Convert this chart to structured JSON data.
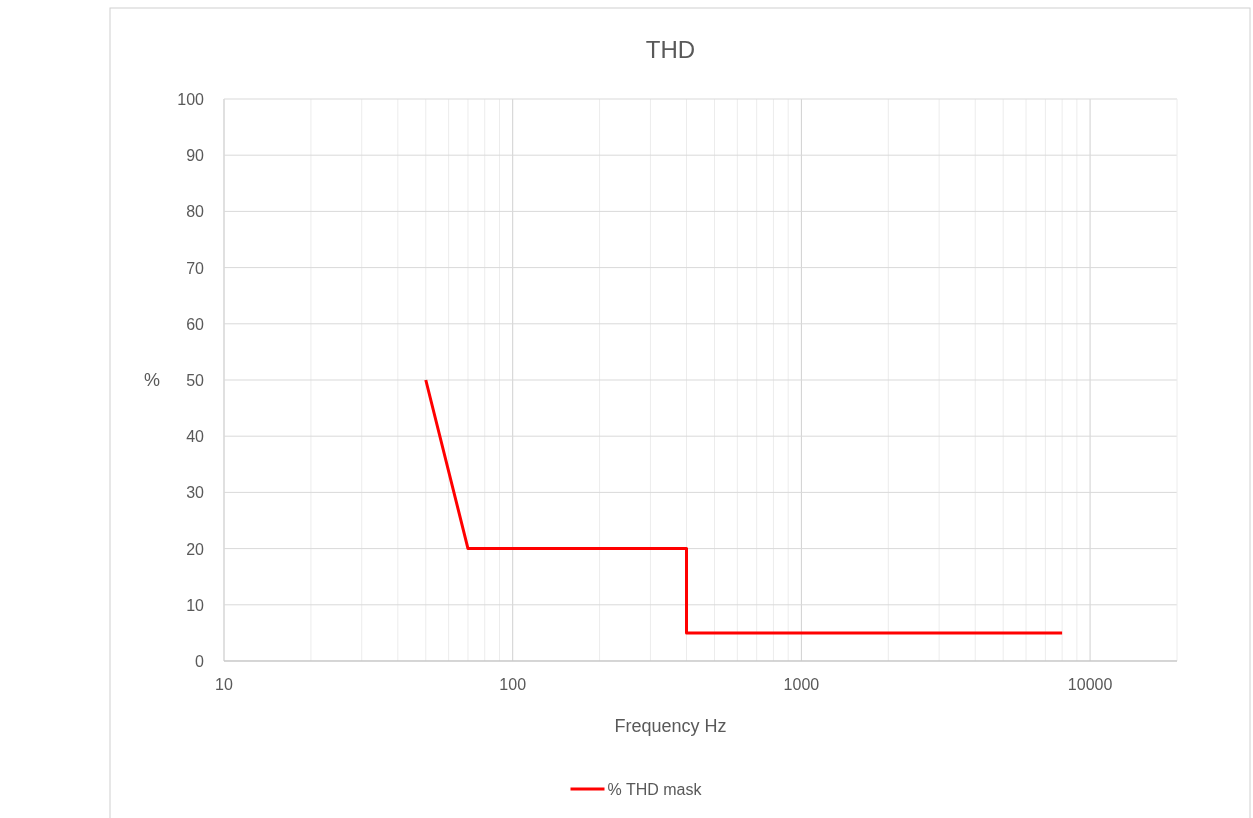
{
  "chart_data": {
    "type": "line",
    "title": "THD",
    "xlabel": "Frequency  Hz",
    "ylabel": "%",
    "log": "x",
    "xlim": [
      10,
      20000
    ],
    "xticks": [
      10,
      {
        "value": 20,
        "label": null
      },
      {
        "value": 30,
        "label": null
      },
      {
        "value": 40,
        "label": null
      },
      {
        "value": 50,
        "label": null
      },
      {
        "value": 60,
        "label": null
      },
      {
        "value": 70,
        "label": null
      },
      {
        "value": 80,
        "label": null
      },
      {
        "value": 90,
        "label": null
      },
      100,
      {
        "value": 200,
        "label": null
      },
      {
        "value": 300,
        "label": null
      },
      {
        "value": 400,
        "label": null
      },
      {
        "value": 500,
        "label": null
      },
      {
        "value": 600,
        "label": null
      },
      {
        "value": 700,
        "label": null
      },
      {
        "value": 800,
        "label": null
      },
      {
        "value": 900,
        "label": null
      },
      1000,
      {
        "value": 2000,
        "label": null
      },
      {
        "value": 3000,
        "label": null
      },
      {
        "value": 4000,
        "label": null
      },
      {
        "value": 5000,
        "label": null
      },
      {
        "value": 6000,
        "label": null
      },
      {
        "value": 7000,
        "label": null
      },
      {
        "value": 8000,
        "label": null
      },
      {
        "value": 9000,
        "label": null
      },
      10000
    ],
    "ylim": [
      0,
      100
    ],
    "yticks": [
      0,
      10,
      20,
      30,
      40,
      50,
      60,
      70,
      80,
      90,
      100
    ],
    "grid": true,
    "legend": "bottom",
    "line_style": "solid",
    "marker": "none",
    "series": [
      {
        "name": "% THD mask",
        "color": "#ff0000",
        "x": [
          50,
          70,
          400,
          400,
          8000
        ],
        "values": [
          50,
          20,
          20,
          5,
          5
        ]
      }
    ]
  }
}
